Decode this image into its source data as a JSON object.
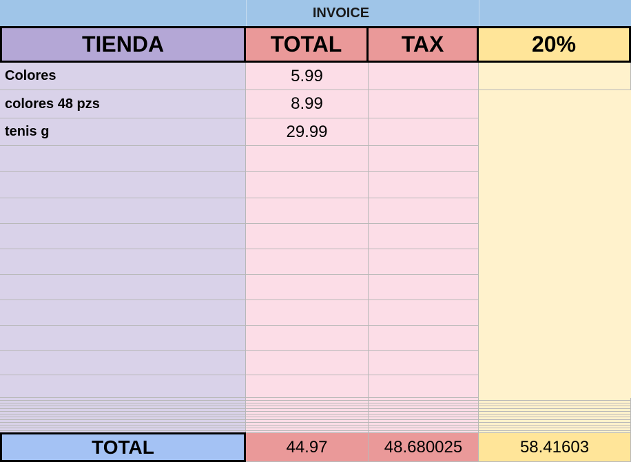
{
  "title": "INVOICE",
  "header": [
    "TIENDA",
    "TOTAL",
    "TAX",
    "20%"
  ],
  "rows": [
    [
      "Colores",
      5.99
    ],
    [
      "colores 48 pzs",
      8.99
    ],
    [
      "tenis g",
      29.99
    ]
  ],
  "total": {
    "label": "TOTAL",
    "values": [
      44.97,
      48.680025,
      58.41603
    ]
  }
}
